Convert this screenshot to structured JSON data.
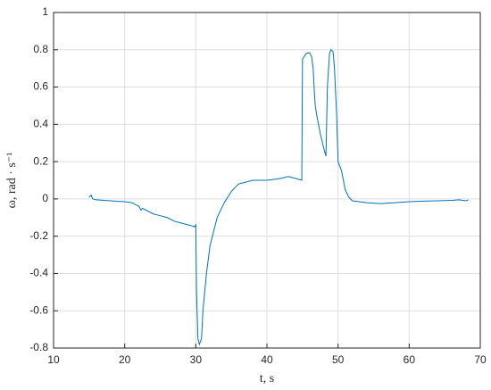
{
  "chart_data": {
    "type": "line",
    "xlabel": "t, s",
    "ylabel": "ω, rad · s⁻¹",
    "x": [
      15,
      15.3,
      15.5,
      16,
      18,
      20,
      21,
      22,
      22.3,
      22.5,
      23,
      24,
      25,
      26,
      27,
      28,
      29,
      29.5,
      29.8,
      30,
      30.1,
      30.3,
      30.5,
      30.8,
      31,
      31.5,
      32,
      33,
      34,
      35,
      36,
      37,
      38,
      40,
      42,
      43,
      44,
      44.9,
      45,
      45.5,
      46,
      46.3,
      46.5,
      46.7,
      46.8,
      47,
      47.5,
      48,
      48.3,
      48.5,
      48.8,
      49,
      49.3,
      49.5,
      49.8,
      50,
      50.5,
      51,
      51.5,
      52,
      54,
      56,
      58,
      60,
      62,
      64,
      66,
      67,
      68,
      68.3
    ],
    "values": [
      0.01,
      0.02,
      0.0,
      -0.005,
      -0.01,
      -0.015,
      -0.02,
      -0.04,
      -0.06,
      -0.05,
      -0.06,
      -0.08,
      -0.09,
      -0.1,
      -0.12,
      -0.13,
      -0.14,
      -0.145,
      -0.15,
      -0.14,
      -0.5,
      -0.75,
      -0.78,
      -0.75,
      -0.6,
      -0.4,
      -0.25,
      -0.1,
      -0.02,
      0.04,
      0.08,
      0.09,
      0.1,
      0.1,
      0.11,
      0.12,
      0.11,
      0.1,
      0.75,
      0.78,
      0.785,
      0.76,
      0.7,
      0.55,
      0.5,
      0.45,
      0.35,
      0.27,
      0.23,
      0.6,
      0.78,
      0.8,
      0.79,
      0.7,
      0.45,
      0.2,
      0.15,
      0.05,
      0.01,
      -0.01,
      -0.02,
      -0.025,
      -0.02,
      -0.015,
      -0.012,
      -0.01,
      -0.008,
      -0.005,
      -0.01,
      -0.005
    ],
    "color": "#0072bd",
    "xlim": [
      10,
      70
    ],
    "xticks": [
      10,
      20,
      30,
      40,
      50,
      60,
      70
    ],
    "ylim": [
      -0.8,
      1
    ],
    "yticks": [
      -0.8,
      -0.6,
      -0.4,
      -0.2,
      0,
      0.2,
      0.4,
      0.6,
      0.8,
      1
    ],
    "grid": true
  }
}
